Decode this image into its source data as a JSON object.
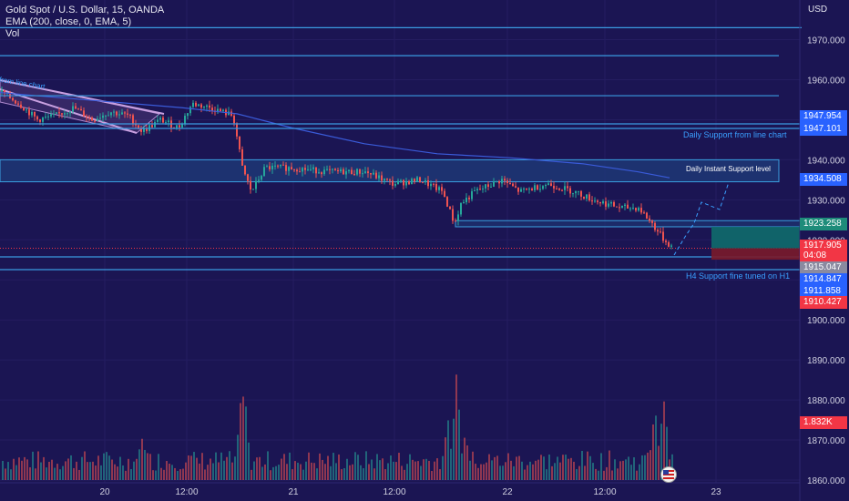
{
  "header": {
    "title": "Gold Spot / U.S. Dollar, 15, OANDA",
    "indicator": "EMA (200, close, 0, EMA, 5)",
    "volume_label": "Vol"
  },
  "price_scale": {
    "currency": "USD"
  },
  "price_tags": [
    {
      "value": "1947.954",
      "color": "#2962ff",
      "text_color": "#ffffff"
    },
    {
      "value": "1947.101",
      "color": "#2962ff",
      "text_color": "#ffffff"
    },
    {
      "value": "1934.508",
      "color": "#2962ff",
      "text_color": "#ffffff"
    },
    {
      "value": "1923.258",
      "color": "#1e8c7a",
      "text_color": "#ffffff"
    },
    {
      "value": "1917.905",
      "color": "#f23645",
      "text_color": "#ffffff"
    },
    {
      "value": "1915.047",
      "color": "#8a8aa0",
      "text_color": "#ffffff"
    },
    {
      "value": "1914.847",
      "color": "#2962ff",
      "text_color": "#ffffff"
    },
    {
      "value": "1911.858",
      "color": "#2962ff",
      "text_color": "#ffffff"
    },
    {
      "value": "1910.427",
      "color": "#f23645",
      "text_color": "#ffffff"
    }
  ],
  "countdown": "04:08",
  "volume_tag": {
    "value": "1.832K",
    "color": "#f23645"
  },
  "annotations": {
    "daily_support_line": "Daily Support from line chart",
    "daily_instant_support": "Daily Instant Support level",
    "h4_support": "H4 Support fine tuned on H1",
    "channel_label": "from line chart"
  },
  "colors": {
    "background": "#1b1553",
    "up_candle": "#26a69a",
    "down_candle": "#ef5350",
    "zone_fill": "#1e3a78",
    "zone_border": "#3aa0e0",
    "ema_line": "#3a5bd9",
    "target_fill": "#0f6b6b",
    "stop_fill": "#7a1a2a"
  },
  "chart_data": {
    "type": "candlestick",
    "title": "Gold Spot / U.S. Dollar, 15, OANDA",
    "ylim": [
      1858,
      1973
    ],
    "y_ticks": [
      1860,
      1870,
      1880,
      1890,
      1900,
      1910,
      1920,
      1930,
      1940,
      1950,
      1960,
      1970
    ],
    "x_ticks": [
      "20",
      "12:00",
      "21",
      "12:00",
      "22",
      "12:00",
      "23"
    ],
    "series": [
      {
        "name": "EMA (200, close, 0, EMA, 5)",
        "type": "line",
        "points": [
          [
            0,
            1956.8
          ],
          [
            40,
            1956.0
          ],
          [
            120,
            1954.5
          ],
          [
            200,
            1953.0
          ],
          [
            260,
            1951.5
          ],
          [
            320,
            1948.0
          ],
          [
            400,
            1944.0
          ],
          [
            480,
            1941.5
          ],
          [
            560,
            1940.5
          ],
          [
            640,
            1939.0
          ],
          [
            700,
            1937.0
          ],
          [
            735,
            1935.5
          ]
        ]
      }
    ],
    "price_path": [
      [
        0,
        1957
      ],
      [
        20,
        1954
      ],
      [
        40,
        1950
      ],
      [
        60,
        1951
      ],
      [
        80,
        1953
      ],
      [
        100,
        1950
      ],
      [
        120,
        1952
      ],
      [
        140,
        1951
      ],
      [
        155,
        1947
      ],
      [
        175,
        1950
      ],
      [
        195,
        1948
      ],
      [
        210,
        1954
      ],
      [
        230,
        1953
      ],
      [
        255,
        1951
      ],
      [
        265,
        1938
      ],
      [
        275,
        1932
      ],
      [
        290,
        1938
      ],
      [
        320,
        1938
      ],
      [
        360,
        1937
      ],
      [
        400,
        1937
      ],
      [
        430,
        1934
      ],
      [
        460,
        1935
      ],
      [
        485,
        1932
      ],
      [
        498,
        1924
      ],
      [
        505,
        1929
      ],
      [
        520,
        1932
      ],
      [
        550,
        1935
      ],
      [
        570,
        1932
      ],
      [
        600,
        1934
      ],
      [
        630,
        1932
      ],
      [
        650,
        1930
      ],
      [
        680,
        1928
      ],
      [
        700,
        1928
      ],
      [
        715,
        1924
      ],
      [
        728,
        1920
      ],
      [
        738,
        1917.9
      ]
    ],
    "horizontal_levels": [
      1973,
      1966,
      1956,
      1947.954,
      1947.101,
      1914.847,
      1911.858
    ],
    "zones": [
      {
        "label": "Daily Instant Support level",
        "from": 1934.5,
        "to": 1940
      },
      {
        "label": "",
        "from": 1923.258,
        "to": 1924.8
      }
    ],
    "position": {
      "entry": 1917.905,
      "target": 1923.258,
      "stop": 1915.047
    },
    "volume": {
      "max_label": "1.832K",
      "peaks": [
        [
          267,
          0.9
        ],
        [
          500,
          1.0
        ],
        [
          263,
          0.7
        ],
        [
          718,
          0.75
        ],
        [
          728,
          0.82
        ],
        [
          490,
          0.6
        ],
        [
          510,
          0.5
        ],
        [
          155,
          0.45
        ]
      ]
    }
  }
}
